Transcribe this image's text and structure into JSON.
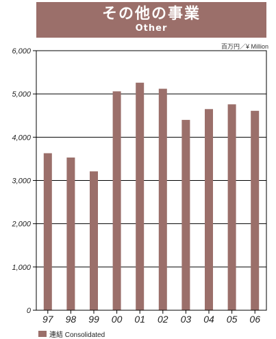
{
  "title": {
    "main": "その他の事業",
    "sub": "Other"
  },
  "unit_label": "百万円／¥ Million",
  "colors": {
    "bar": "#9b6f6a",
    "banner": "#9b6f6a",
    "grid": "#000000"
  },
  "legend": {
    "label": "連結 Consolidated"
  },
  "chart_data": {
    "type": "bar",
    "title": "その他の事業",
    "subtitle": "Other",
    "categories": [
      "97",
      "98",
      "99",
      "00",
      "01",
      "02",
      "03",
      "04",
      "05",
      "06"
    ],
    "series": [
      {
        "name": "連結 Consolidated",
        "values": [
          3630,
          3530,
          3210,
          5060,
          5260,
          5120,
          4400,
          4650,
          4760,
          4610
        ]
      }
    ],
    "ylim": [
      0,
      6000
    ],
    "yticks": [
      "0",
      "1,000",
      "2,000",
      "3,000",
      "4,000",
      "5,000",
      "6,000"
    ],
    "ytick_values": [
      0,
      1000,
      2000,
      3000,
      4000,
      5000,
      6000
    ],
    "grid": true,
    "legend_position": "bottom-left",
    "xlabel": "",
    "ylabel": ""
  }
}
